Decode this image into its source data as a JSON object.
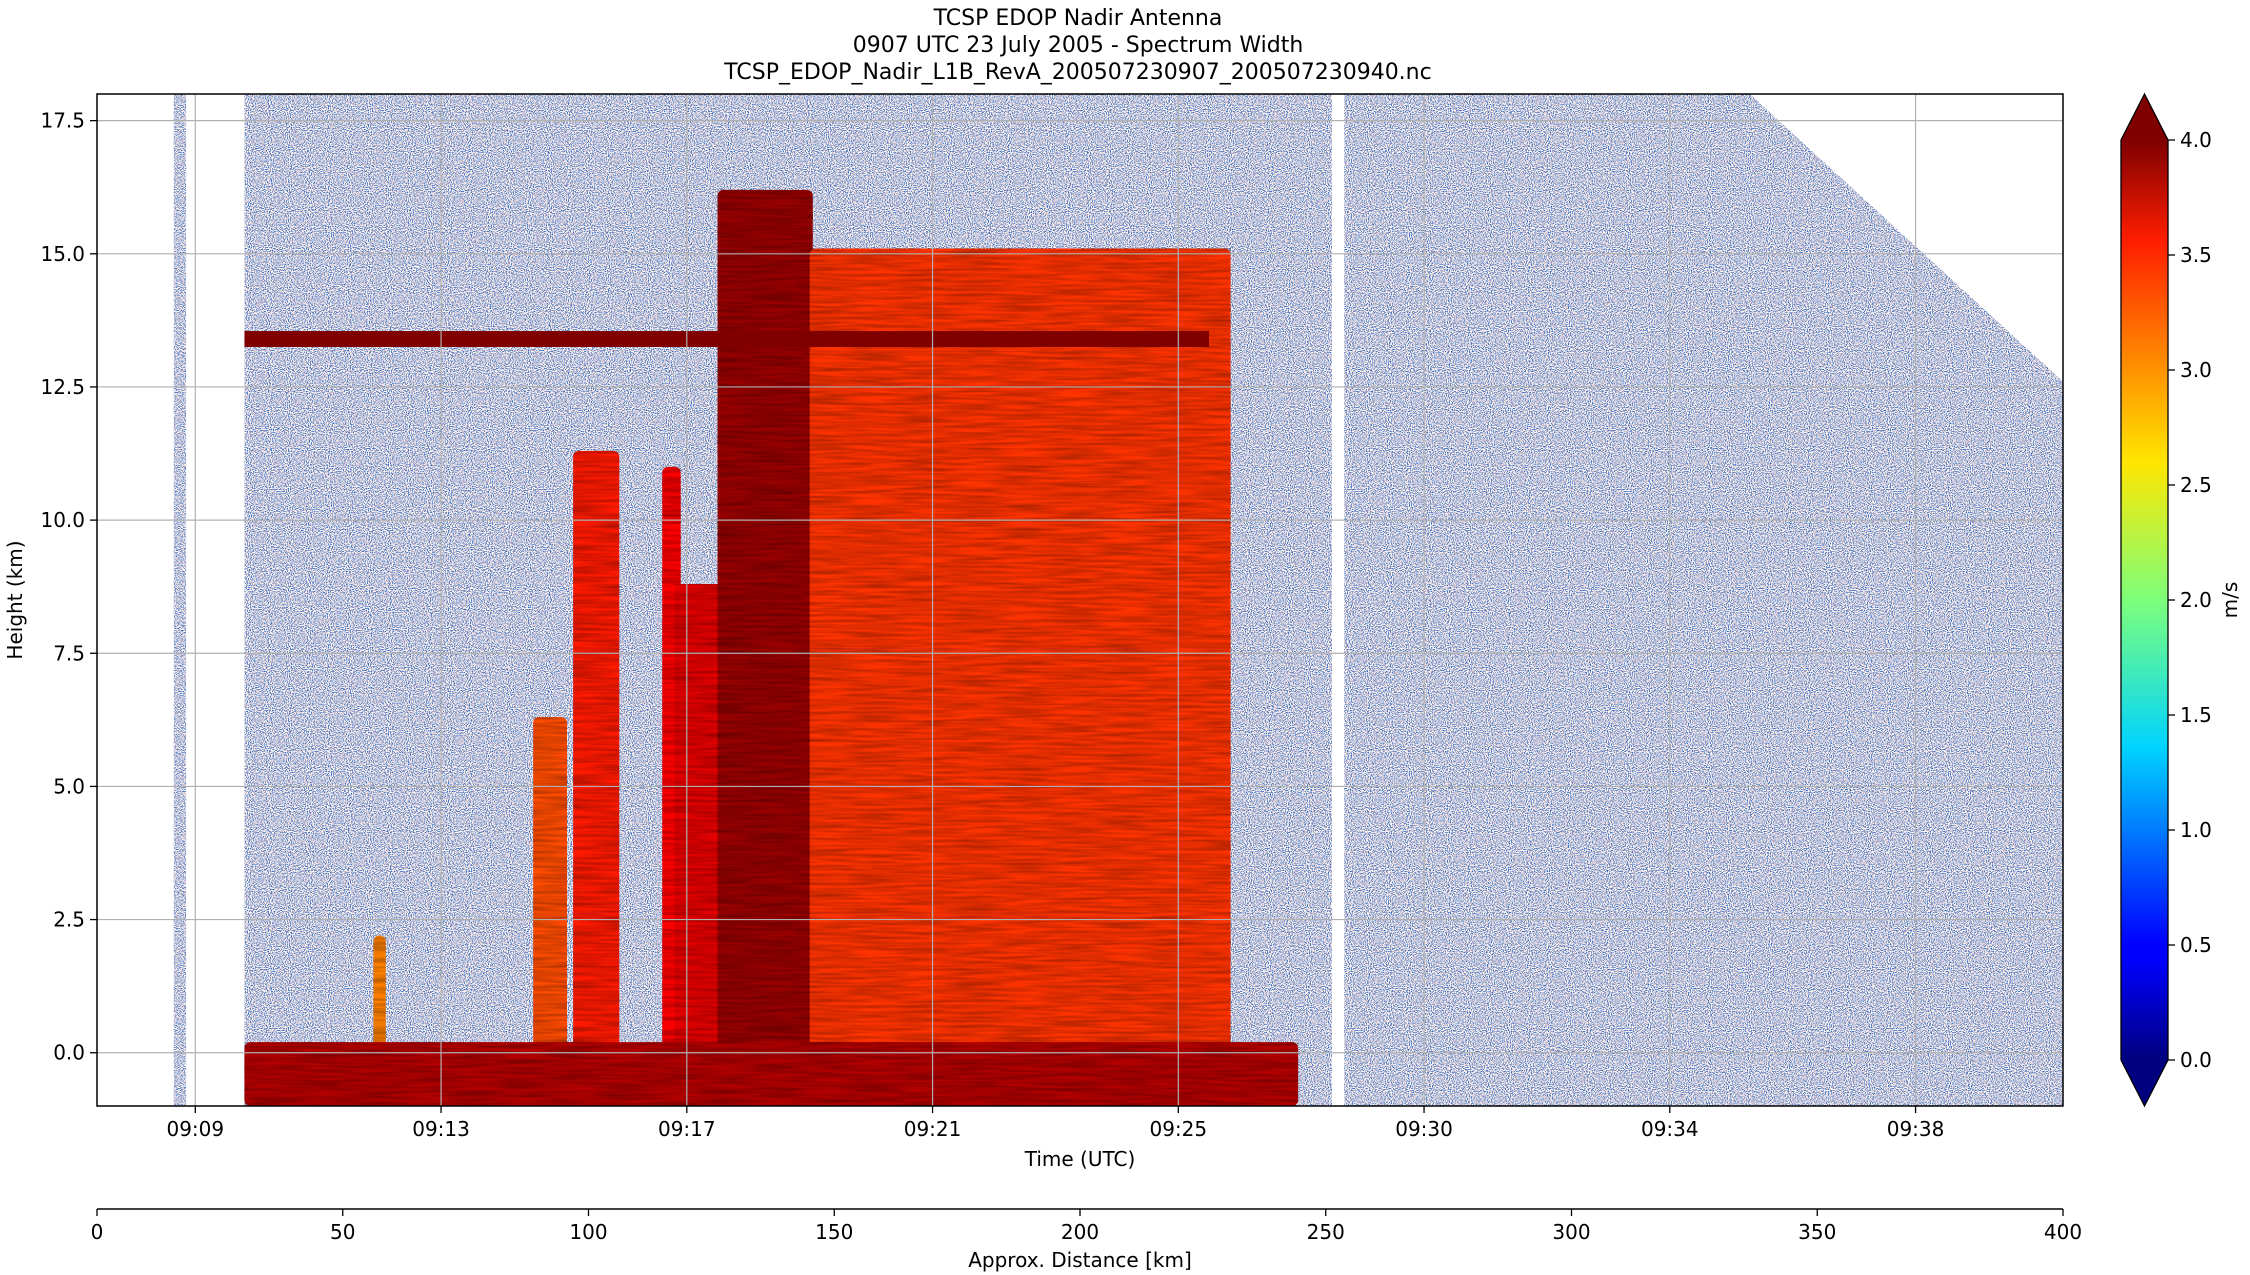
{
  "title_lines": [
    "TCSP EDOP Nadir Antenna",
    "0907 UTC 23 July 2005 - Spectrum Width",
    "TCSP_EDOP_Nadir_L1B_RevA_200507230907_200507230940.nc"
  ],
  "chart_data": {
    "type": "heatmap",
    "title": "TCSP EDOP Nadir Antenna",
    "subtitle": "0907 UTC 23 July 2005 - Spectrum Width",
    "filename": "TCSP_EDOP_Nadir_L1B_RevA_200507230907_200507230940.nc",
    "xlabel": "Time (UTC)",
    "ylabel": "Height (km)",
    "x_tick_labels": [
      "09:09",
      "09:13",
      "09:17",
      "09:21",
      "09:25",
      "09:30",
      "09:34",
      "09:38"
    ],
    "x_tick_minutes": [
      9.5,
      13.5,
      17.5,
      21.5,
      25.5,
      29.5,
      33.5,
      37.5
    ],
    "xlim_minutes": [
      7.9,
      39.9
    ],
    "y_ticks": [
      0.0,
      2.5,
      5.0,
      7.5,
      10.0,
      12.5,
      15.0,
      17.5
    ],
    "y_tick_labels": [
      "0.0",
      "2.5",
      "5.0",
      "7.5",
      "10.0",
      "12.5",
      "15.0",
      "17.5"
    ],
    "ylim": [
      -1.0,
      18.0
    ],
    "grid": true,
    "secondary_axis": {
      "label": "Approx. Distance [km]",
      "ticks": [
        0,
        50,
        100,
        150,
        200,
        250,
        300,
        350,
        400
      ],
      "tick_labels": [
        "0",
        "50",
        "100",
        "150",
        "200",
        "250",
        "300",
        "350",
        "400"
      ],
      "range": [
        0,
        400
      ]
    },
    "colorbar": {
      "label": "m/s",
      "range": [
        0.0,
        4.0
      ],
      "ticks": [
        0.0,
        0.5,
        1.0,
        1.5,
        2.0,
        2.5,
        3.0,
        3.5,
        4.0
      ],
      "tick_labels": [
        "0.0",
        "0.5",
        "1.0",
        "1.5",
        "2.0",
        "2.5",
        "3.0",
        "3.5",
        "4.0"
      ],
      "colormap": "jet",
      "extend": "both"
    },
    "data_gaps_minutes": [
      [
        7.9,
        9.15
      ],
      [
        9.35,
        10.3
      ],
      [
        28.0,
        28.2
      ]
    ],
    "echo_features": [
      {
        "feature": "convective cell",
        "t_start": 15.65,
        "t_end": 16.4,
        "z_top": 11.3,
        "width_ms": 3.4
      },
      {
        "feature": "convective cell",
        "t_start": 15.0,
        "t_end": 15.55,
        "z_top": 6.3,
        "width_ms": 3.2
      },
      {
        "feature": "convective cell",
        "t_start": 17.1,
        "t_end": 17.4,
        "z_top": 11.0,
        "width_ms": 3.5
      },
      {
        "feature": "convective cell",
        "t_start": 17.3,
        "t_end": 18.1,
        "z_top": 8.8,
        "width_ms": 3.6
      },
      {
        "feature": "convective core",
        "t_start": 18.0,
        "t_end": 19.55,
        "z_top": 16.2,
        "width_ms": 3.9
      },
      {
        "feature": "anvil / stratiform",
        "t_start": 19.5,
        "t_end": 26.35,
        "z_top": 15.1,
        "width_ms": 3.3
      },
      {
        "feature": "shallow cell",
        "t_start": 12.4,
        "t_end": 12.6,
        "z_top": 2.2,
        "width_ms": 3.0
      },
      {
        "feature": "surface return",
        "t_start": 10.3,
        "t_end": 27.45,
        "z_top": 0.0,
        "width_ms": 3.8
      },
      {
        "feature": "artifact band",
        "t_start": 10.3,
        "t_end": 26.0,
        "z_top": 13.4,
        "width_ms": 4.0
      }
    ]
  }
}
